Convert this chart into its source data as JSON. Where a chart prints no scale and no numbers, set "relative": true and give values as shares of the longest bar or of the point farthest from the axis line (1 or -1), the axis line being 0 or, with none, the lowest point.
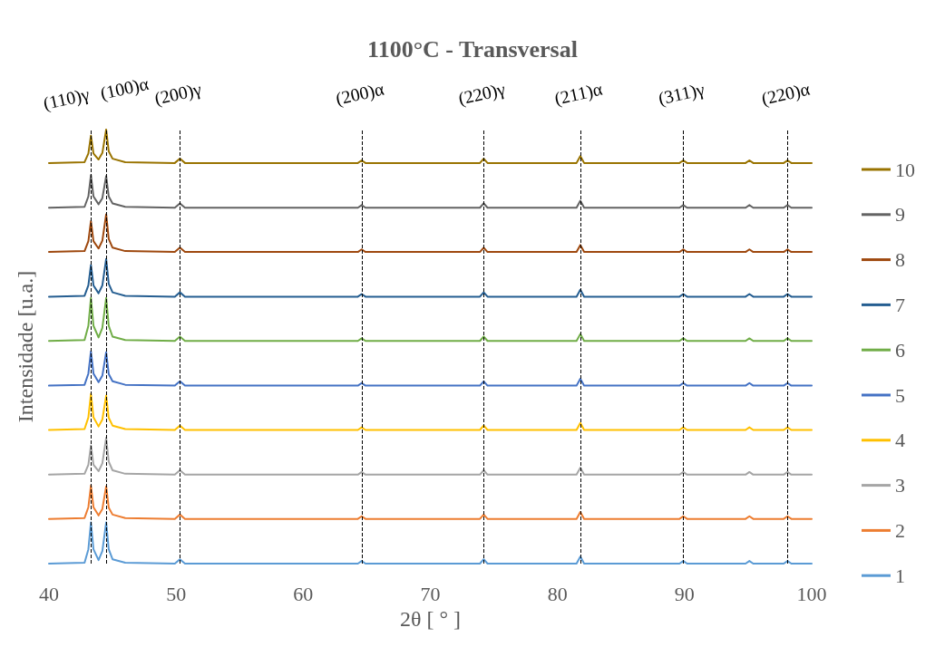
{
  "chart_data": {
    "type": "line",
    "title": "1100°C - Transversal",
    "xlabel": "2θ [ ° ]",
    "ylabel": "Intensidade [u.a.]",
    "relative": true,
    "grid": false,
    "legend": "right",
    "marker": "none",
    "line_style": "solid",
    "xlim": [
      40,
      100
    ],
    "xticks": [
      40,
      50,
      60,
      70,
      80,
      90,
      100
    ],
    "x": [
      40,
      42.8,
      43.1,
      43.3,
      43.5,
      43.9,
      44.2,
      44.5,
      44.7,
      45,
      46,
      49.9,
      50.3,
      50.7,
      55,
      64.3,
      64.6,
      64.9,
      70,
      73.9,
      74.2,
      74.5,
      78,
      81.5,
      81.8,
      82.1,
      86,
      89.6,
      89.9,
      90.2,
      94.8,
      95.1,
      95.4,
      97.8,
      98.1,
      98.4,
      100
    ],
    "series": [
      {
        "name": "1",
        "color": "#5b9bd5",
        "values": [
          0,
          0.002,
          0.033,
          0.095,
          0.033,
          0.008,
          0.029,
          0.095,
          0.033,
          0.01,
          0.002,
          0,
          0.01,
          0,
          0,
          0,
          0.006,
          0,
          0,
          0,
          0.01,
          0,
          0,
          0,
          0.016,
          0,
          0,
          0,
          0.006,
          0,
          0,
          0.006,
          0,
          0,
          0.006,
          0,
          0
        ]
      },
      {
        "name": "2",
        "color": "#ed7d31",
        "values": [
          0.103,
          0.105,
          0.13,
          0.18,
          0.13,
          0.111,
          0.126,
          0.178,
          0.129,
          0.113,
          0.105,
          0.103,
          0.113,
          0.103,
          0.103,
          0.103,
          0.109,
          0.103,
          0.103,
          0.103,
          0.113,
          0.103,
          0.103,
          0.103,
          0.119,
          0.103,
          0.103,
          0.103,
          0.109,
          0.103,
          0.103,
          0.109,
          0.103,
          0.103,
          0.109,
          0.103,
          0.103
        ]
      },
      {
        "name": "3",
        "color": "#a5a5a5",
        "values": [
          0.205,
          0.207,
          0.228,
          0.272,
          0.228,
          0.213,
          0.231,
          0.29,
          0.235,
          0.215,
          0.207,
          0.205,
          0.215,
          0.205,
          0.205,
          0.205,
          0.211,
          0.205,
          0.205,
          0.205,
          0.215,
          0.205,
          0.205,
          0.205,
          0.221,
          0.205,
          0.205,
          0.205,
          0.211,
          0.205,
          0.205,
          0.211,
          0.205,
          0.205,
          0.211,
          0.205,
          0.205
        ]
      },
      {
        "name": "4",
        "color": "#ffc000",
        "values": [
          0.308,
          0.31,
          0.337,
          0.391,
          0.337,
          0.316,
          0.332,
          0.387,
          0.336,
          0.318,
          0.31,
          0.308,
          0.318,
          0.308,
          0.308,
          0.308,
          0.314,
          0.308,
          0.308,
          0.308,
          0.318,
          0.308,
          0.308,
          0.308,
          0.324,
          0.308,
          0.308,
          0.308,
          0.314,
          0.308,
          0.308,
          0.314,
          0.308,
          0.308,
          0.314,
          0.308,
          0.308
        ]
      },
      {
        "name": "5",
        "color": "#4472c4",
        "values": [
          0.41,
          0.412,
          0.438,
          0.489,
          0.438,
          0.418,
          0.433,
          0.487,
          0.437,
          0.42,
          0.412,
          0.41,
          0.42,
          0.41,
          0.41,
          0.41,
          0.416,
          0.41,
          0.41,
          0.41,
          0.42,
          0.41,
          0.41,
          0.41,
          0.426,
          0.41,
          0.41,
          0.41,
          0.416,
          0.41,
          0.41,
          0.416,
          0.41,
          0.41,
          0.416,
          0.41,
          0.41
        ]
      },
      {
        "name": "6",
        "color": "#70ad47",
        "values": [
          0.513,
          0.515,
          0.548,
          0.612,
          0.548,
          0.521,
          0.543,
          0.612,
          0.548,
          0.523,
          0.515,
          0.513,
          0.523,
          0.513,
          0.513,
          0.513,
          0.519,
          0.513,
          0.513,
          0.513,
          0.523,
          0.513,
          0.513,
          0.513,
          0.529,
          0.513,
          0.513,
          0.513,
          0.519,
          0.513,
          0.513,
          0.519,
          0.513,
          0.513,
          0.519,
          0.513,
          0.513
        ]
      },
      {
        "name": "7",
        "color": "#255e91",
        "values": [
          0.615,
          0.617,
          0.641,
          0.688,
          0.641,
          0.623,
          0.641,
          0.702,
          0.645,
          0.625,
          0.617,
          0.615,
          0.625,
          0.615,
          0.615,
          0.615,
          0.621,
          0.615,
          0.615,
          0.615,
          0.625,
          0.615,
          0.615,
          0.615,
          0.631,
          0.615,
          0.615,
          0.615,
          0.621,
          0.615,
          0.615,
          0.621,
          0.615,
          0.615,
          0.621,
          0.615,
          0.615
        ]
      },
      {
        "name": "8",
        "color": "#9e480e",
        "values": [
          0.718,
          0.72,
          0.743,
          0.789,
          0.743,
          0.726,
          0.744,
          0.805,
          0.748,
          0.728,
          0.72,
          0.718,
          0.728,
          0.718,
          0.718,
          0.718,
          0.724,
          0.718,
          0.718,
          0.718,
          0.728,
          0.718,
          0.718,
          0.718,
          0.734,
          0.718,
          0.718,
          0.718,
          0.724,
          0.718,
          0.718,
          0.724,
          0.718,
          0.718,
          0.724,
          0.718,
          0.718
        ]
      },
      {
        "name": "9",
        "color": "#636363",
        "values": [
          0.82,
          0.822,
          0.846,
          0.895,
          0.846,
          0.828,
          0.842,
          0.893,
          0.846,
          0.83,
          0.822,
          0.82,
          0.83,
          0.82,
          0.82,
          0.82,
          0.826,
          0.82,
          0.82,
          0.82,
          0.83,
          0.82,
          0.82,
          0.82,
          0.836,
          0.82,
          0.82,
          0.82,
          0.826,
          0.82,
          0.82,
          0.826,
          0.82,
          0.82,
          0.826,
          0.82,
          0.82
        ]
      },
      {
        "name": "10",
        "color": "#997300",
        "values": [
          0.923,
          0.925,
          0.945,
          0.986,
          0.945,
          0.931,
          0.946,
          1,
          0.95,
          0.933,
          0.925,
          0.923,
          0.933,
          0.923,
          0.923,
          0.923,
          0.929,
          0.923,
          0.923,
          0.923,
          0.933,
          0.923,
          0.923,
          0.923,
          0.939,
          0.923,
          0.923,
          0.923,
          0.929,
          0.923,
          0.923,
          0.929,
          0.923,
          0.923,
          0.929,
          0.923,
          0.923
        ]
      }
    ],
    "ref_lines": [
      {
        "axis": "x",
        "value": 43.3,
        "label": "(110)γ",
        "line_style": "dashed",
        "color": "#000000"
      },
      {
        "axis": "x",
        "value": 44.5,
        "label": "(100)α",
        "line_style": "dashed",
        "color": "#000000"
      },
      {
        "axis": "x",
        "value": 50.3,
        "label": "(200)γ",
        "line_style": "dashed",
        "color": "#000000"
      },
      {
        "axis": "x",
        "value": 64.6,
        "label": "(200)α",
        "line_style": "dashed",
        "color": "#000000"
      },
      {
        "axis": "x",
        "value": 74.2,
        "label": "(220)γ",
        "line_style": "dashed",
        "color": "#000000"
      },
      {
        "axis": "x",
        "value": 81.8,
        "label": "(211)α",
        "line_style": "dashed",
        "color": "#000000"
      },
      {
        "axis": "x",
        "value": 89.9,
        "label": "(311)γ",
        "line_style": "dashed",
        "color": "#000000"
      },
      {
        "axis": "x",
        "value": 98.1,
        "label": "(220)α",
        "line_style": "dashed",
        "color": "#000000"
      }
    ]
  }
}
